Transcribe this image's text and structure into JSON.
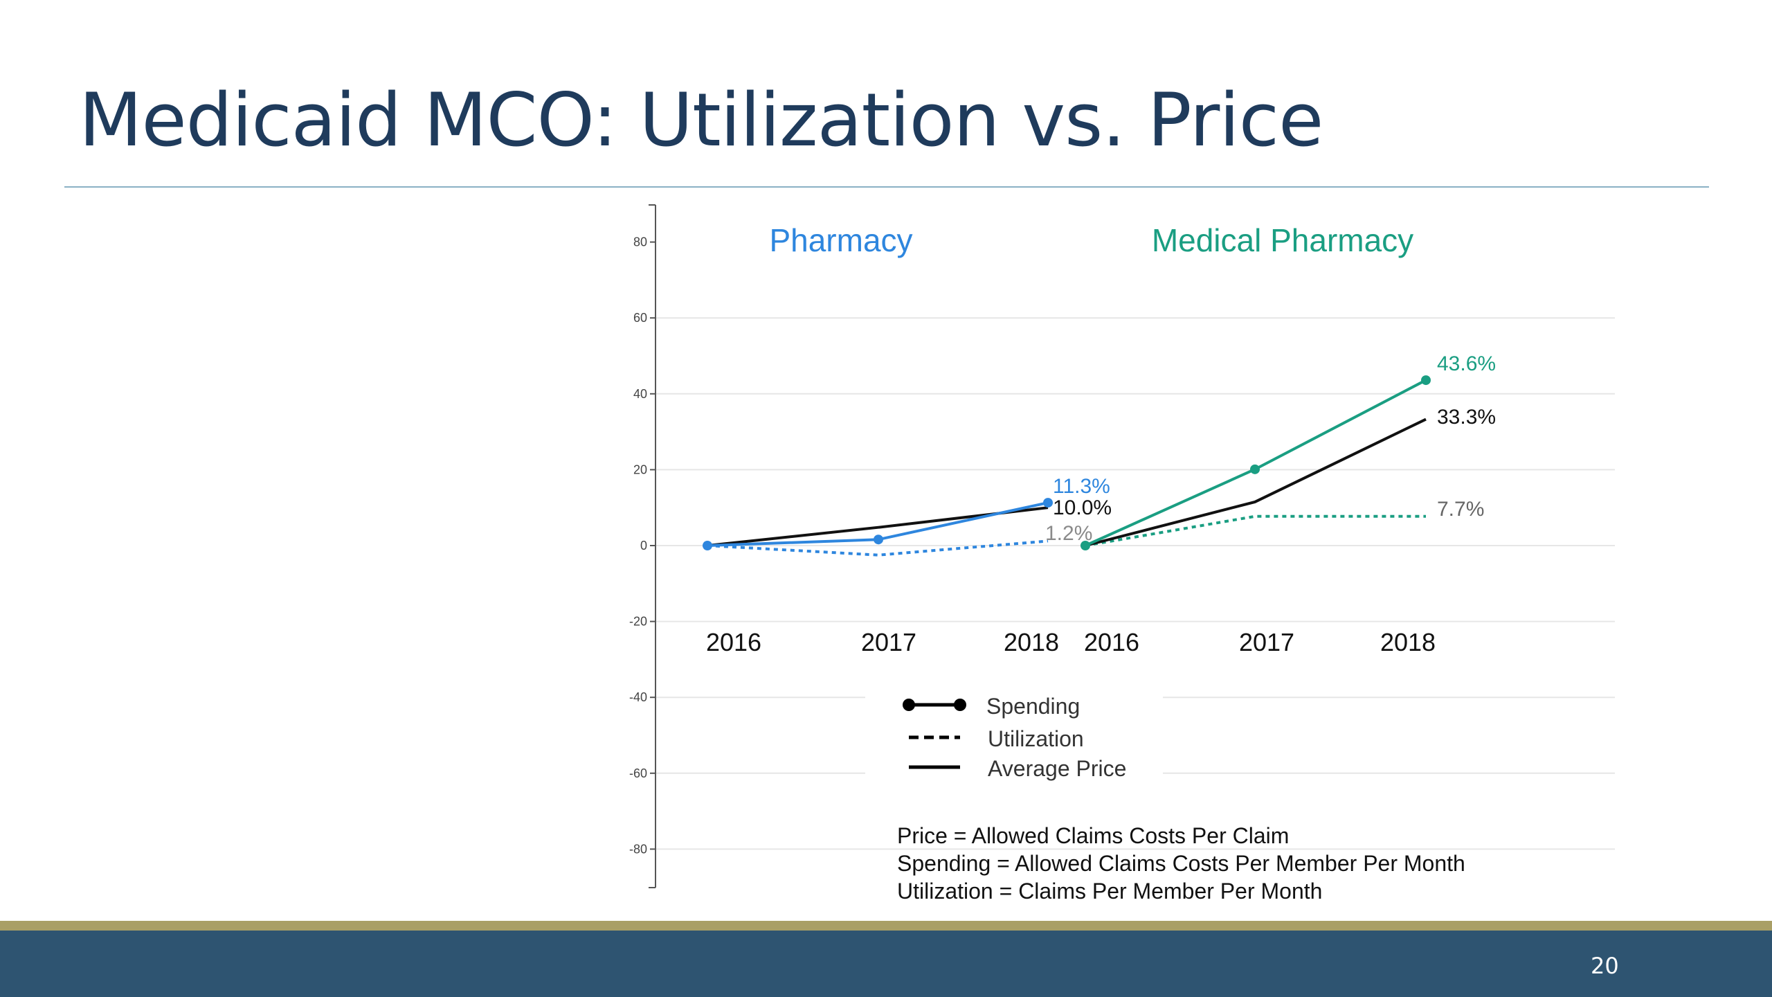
{
  "slide": {
    "title": "Medicaid MCO: Utilization vs. Price",
    "page_number": "20"
  },
  "colors": {
    "title": "#1f3b5c",
    "rule": "#8ab1c4",
    "footer": "#2e5471",
    "gold": "#a99f66",
    "pharmacy": "#2e86de",
    "medical_pharmacy": "#1a9e82",
    "price": "#111111",
    "grid": "#e6e6e6"
  },
  "chart_data": {
    "type": "line",
    "title": "",
    "xlabel": "",
    "ylabel": "",
    "ylim": [
      -90,
      90
    ],
    "yticks": [
      "80",
      "60",
      "40",
      "20",
      "0",
      "-20",
      "-40",
      "-60",
      "-80"
    ],
    "grid": true,
    "legend": {
      "placement": "bottom-center",
      "entries": [
        {
          "label": "Spending",
          "style": "line-with-markers"
        },
        {
          "label": "Utilization",
          "style": "dashed"
        },
        {
          "label": "Average Price",
          "style": "solid"
        }
      ]
    },
    "panels": [
      {
        "title": "Pharmacy",
        "x": [
          "2016",
          "2017",
          "2018"
        ],
        "series": [
          {
            "name": "Spending",
            "values": [
              0,
              1.6,
              11.3
            ],
            "end_label": "11.3%"
          },
          {
            "name": "Utilization",
            "values": [
              0,
              -2.5,
              1.2
            ],
            "end_label": "1.2%"
          },
          {
            "name": "Average Price",
            "values": [
              0,
              4.8,
              10.0
            ],
            "end_label": "10.0%"
          }
        ]
      },
      {
        "title": "Medical Pharmacy",
        "x": [
          "2016",
          "2017",
          "2018"
        ],
        "series": [
          {
            "name": "Spending",
            "values": [
              0,
              20.1,
              43.6
            ],
            "end_label": "43.6%"
          },
          {
            "name": "Utilization",
            "values": [
              0,
              7.7,
              7.7
            ],
            "end_label": "7.7%"
          },
          {
            "name": "Average Price",
            "values": [
              0,
              11.5,
              33.3
            ],
            "end_label": "33.3%"
          }
        ]
      }
    ],
    "definitions": [
      "Price = Allowed Claims Costs Per Claim",
      "Spending = Allowed Claims Costs Per Member Per Month",
      "Utilization = Claims Per Member Per Month"
    ]
  }
}
